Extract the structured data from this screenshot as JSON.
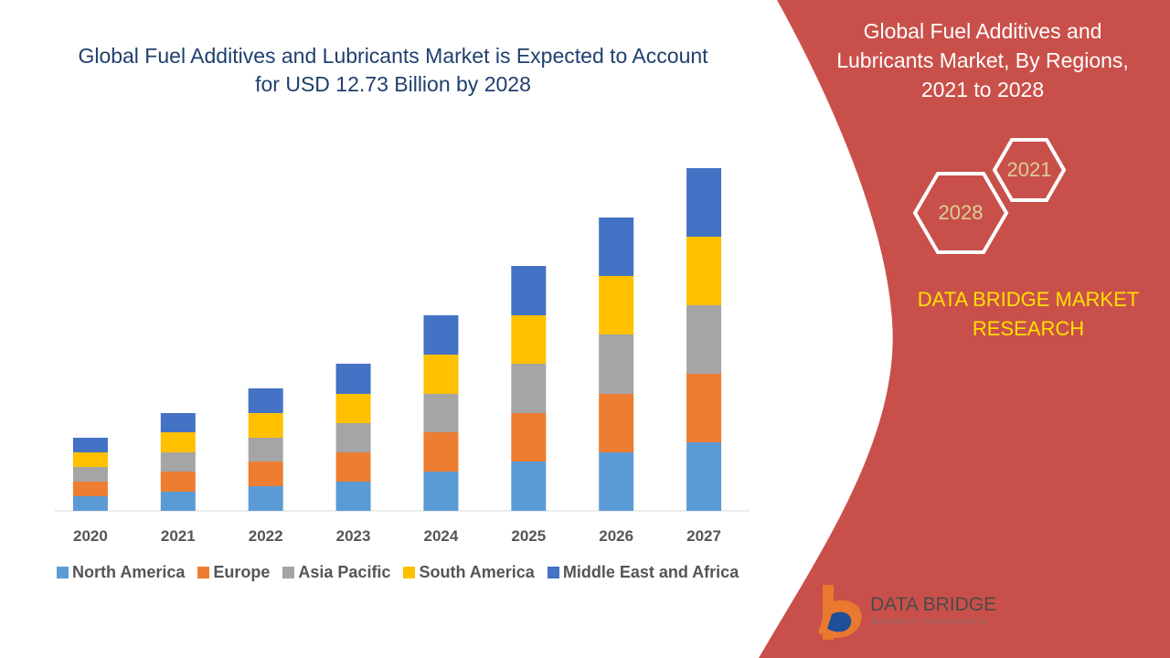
{
  "chart_data": {
    "type": "stacked-bar",
    "title": "Global Fuel Additives and Lubricants Market is Expected to Account for USD 12.73 Billion by 2028",
    "categories": [
      "2020",
      "2021",
      "2022",
      "2023",
      "2024",
      "2025",
      "2026",
      "2027"
    ],
    "series": [
      {
        "name": "North America",
        "color": "#5b9bd5",
        "values": [
          16,
          21,
          27,
          32,
          43,
          54,
          64,
          75
        ]
      },
      {
        "name": "Europe",
        "color": "#ed7d31",
        "values": [
          16,
          22,
          27,
          32,
          43,
          53,
          64,
          75
        ]
      },
      {
        "name": "Asia Pacific",
        "color": "#a5a5a5",
        "values": [
          16,
          21,
          26,
          32,
          42,
          54,
          65,
          75
        ]
      },
      {
        "name": "South America",
        "color": "#ffc000",
        "values": [
          16,
          22,
          27,
          32,
          43,
          53,
          64,
          75
        ]
      },
      {
        "name": "Middle East and Africa",
        "color": "#4472c4",
        "values": [
          16,
          21,
          27,
          33,
          43,
          54,
          64,
          75
        ]
      }
    ]
  },
  "panel": {
    "title": "Global Fuel Additives and Lubricants Market, By Regions, 2021 to 2028",
    "hexagons": [
      "2021",
      "2028"
    ],
    "brand": "DATA BRIDGE MARKET RESEARCH",
    "logo": {
      "name": "DATA BRIDGE",
      "tagline": "MARKET RESEARCH"
    }
  }
}
